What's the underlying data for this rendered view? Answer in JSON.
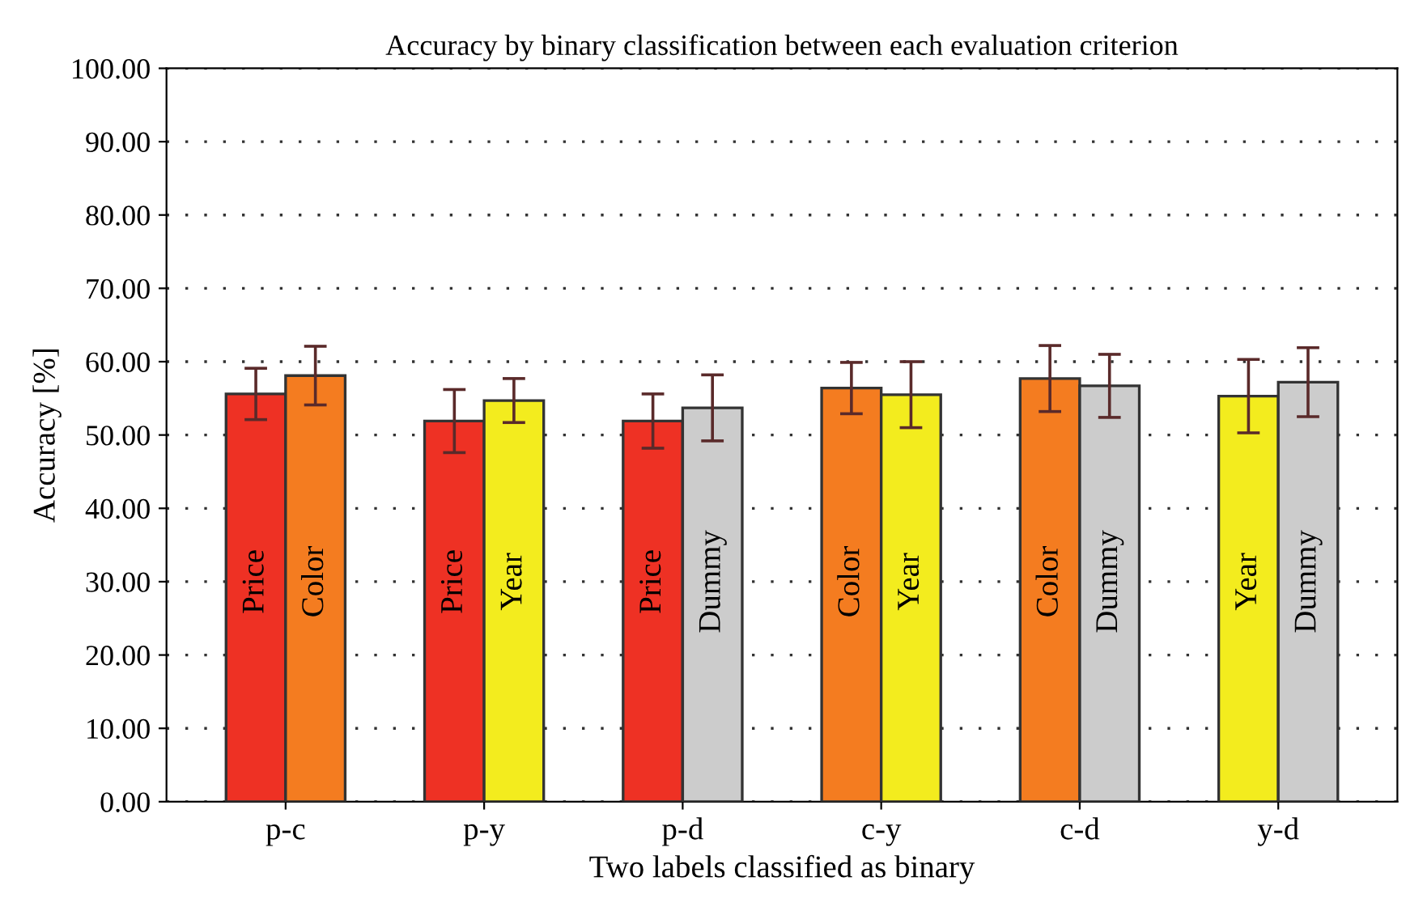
{
  "chart_data": {
    "type": "bar",
    "title": "Accuracy by binary classification between each evaluation criterion",
    "xlabel": "Two labels classified as binary",
    "ylabel": "Accuracy [%]",
    "categories": [
      "p-c",
      "p-y",
      "p-d",
      "c-y",
      "c-d",
      "y-d"
    ],
    "series": [
      {
        "name": "Price",
        "color": "#ee3124",
        "values": [
          55.6,
          51.9,
          51.9,
          null,
          null,
          null
        ],
        "errors": [
          3.5,
          4.3,
          3.7,
          null,
          null,
          null
        ]
      },
      {
        "name": "Color",
        "color": "#f47c20",
        "values": [
          58.1,
          null,
          null,
          56.4,
          57.7,
          null
        ],
        "errors": [
          4,
          null,
          null,
          3.5,
          4.5,
          null
        ]
      },
      {
        "name": "Year",
        "color": "#f3ec1e",
        "values": [
          null,
          54.7,
          null,
          55.5,
          null,
          55.3
        ],
        "errors": [
          null,
          3,
          null,
          4.5,
          null,
          5
        ]
      },
      {
        "name": "Dummy",
        "color": "#cccccc",
        "values": [
          null,
          null,
          53.7,
          null,
          56.7,
          57.2
        ],
        "errors": [
          null,
          null,
          4.5,
          null,
          4.3,
          4.7
        ]
      }
    ],
    "ylim": [
      0,
      100
    ],
    "yticks": [
      {
        "value": 0,
        "label": "0.00"
      },
      {
        "value": 10,
        "label": "10.00"
      },
      {
        "value": 20,
        "label": "20.00"
      },
      {
        "value": 30,
        "label": "30.00"
      },
      {
        "value": 40,
        "label": "40.00"
      },
      {
        "value": 50,
        "label": "50.00"
      },
      {
        "value": 60,
        "label": "60.00"
      },
      {
        "value": 70,
        "label": "70.00"
      },
      {
        "value": 80,
        "label": "80.00"
      },
      {
        "value": 90,
        "label": "90.00"
      },
      {
        "value": 100,
        "label": "100.00"
      }
    ],
    "grid": "y",
    "legend": false
  }
}
